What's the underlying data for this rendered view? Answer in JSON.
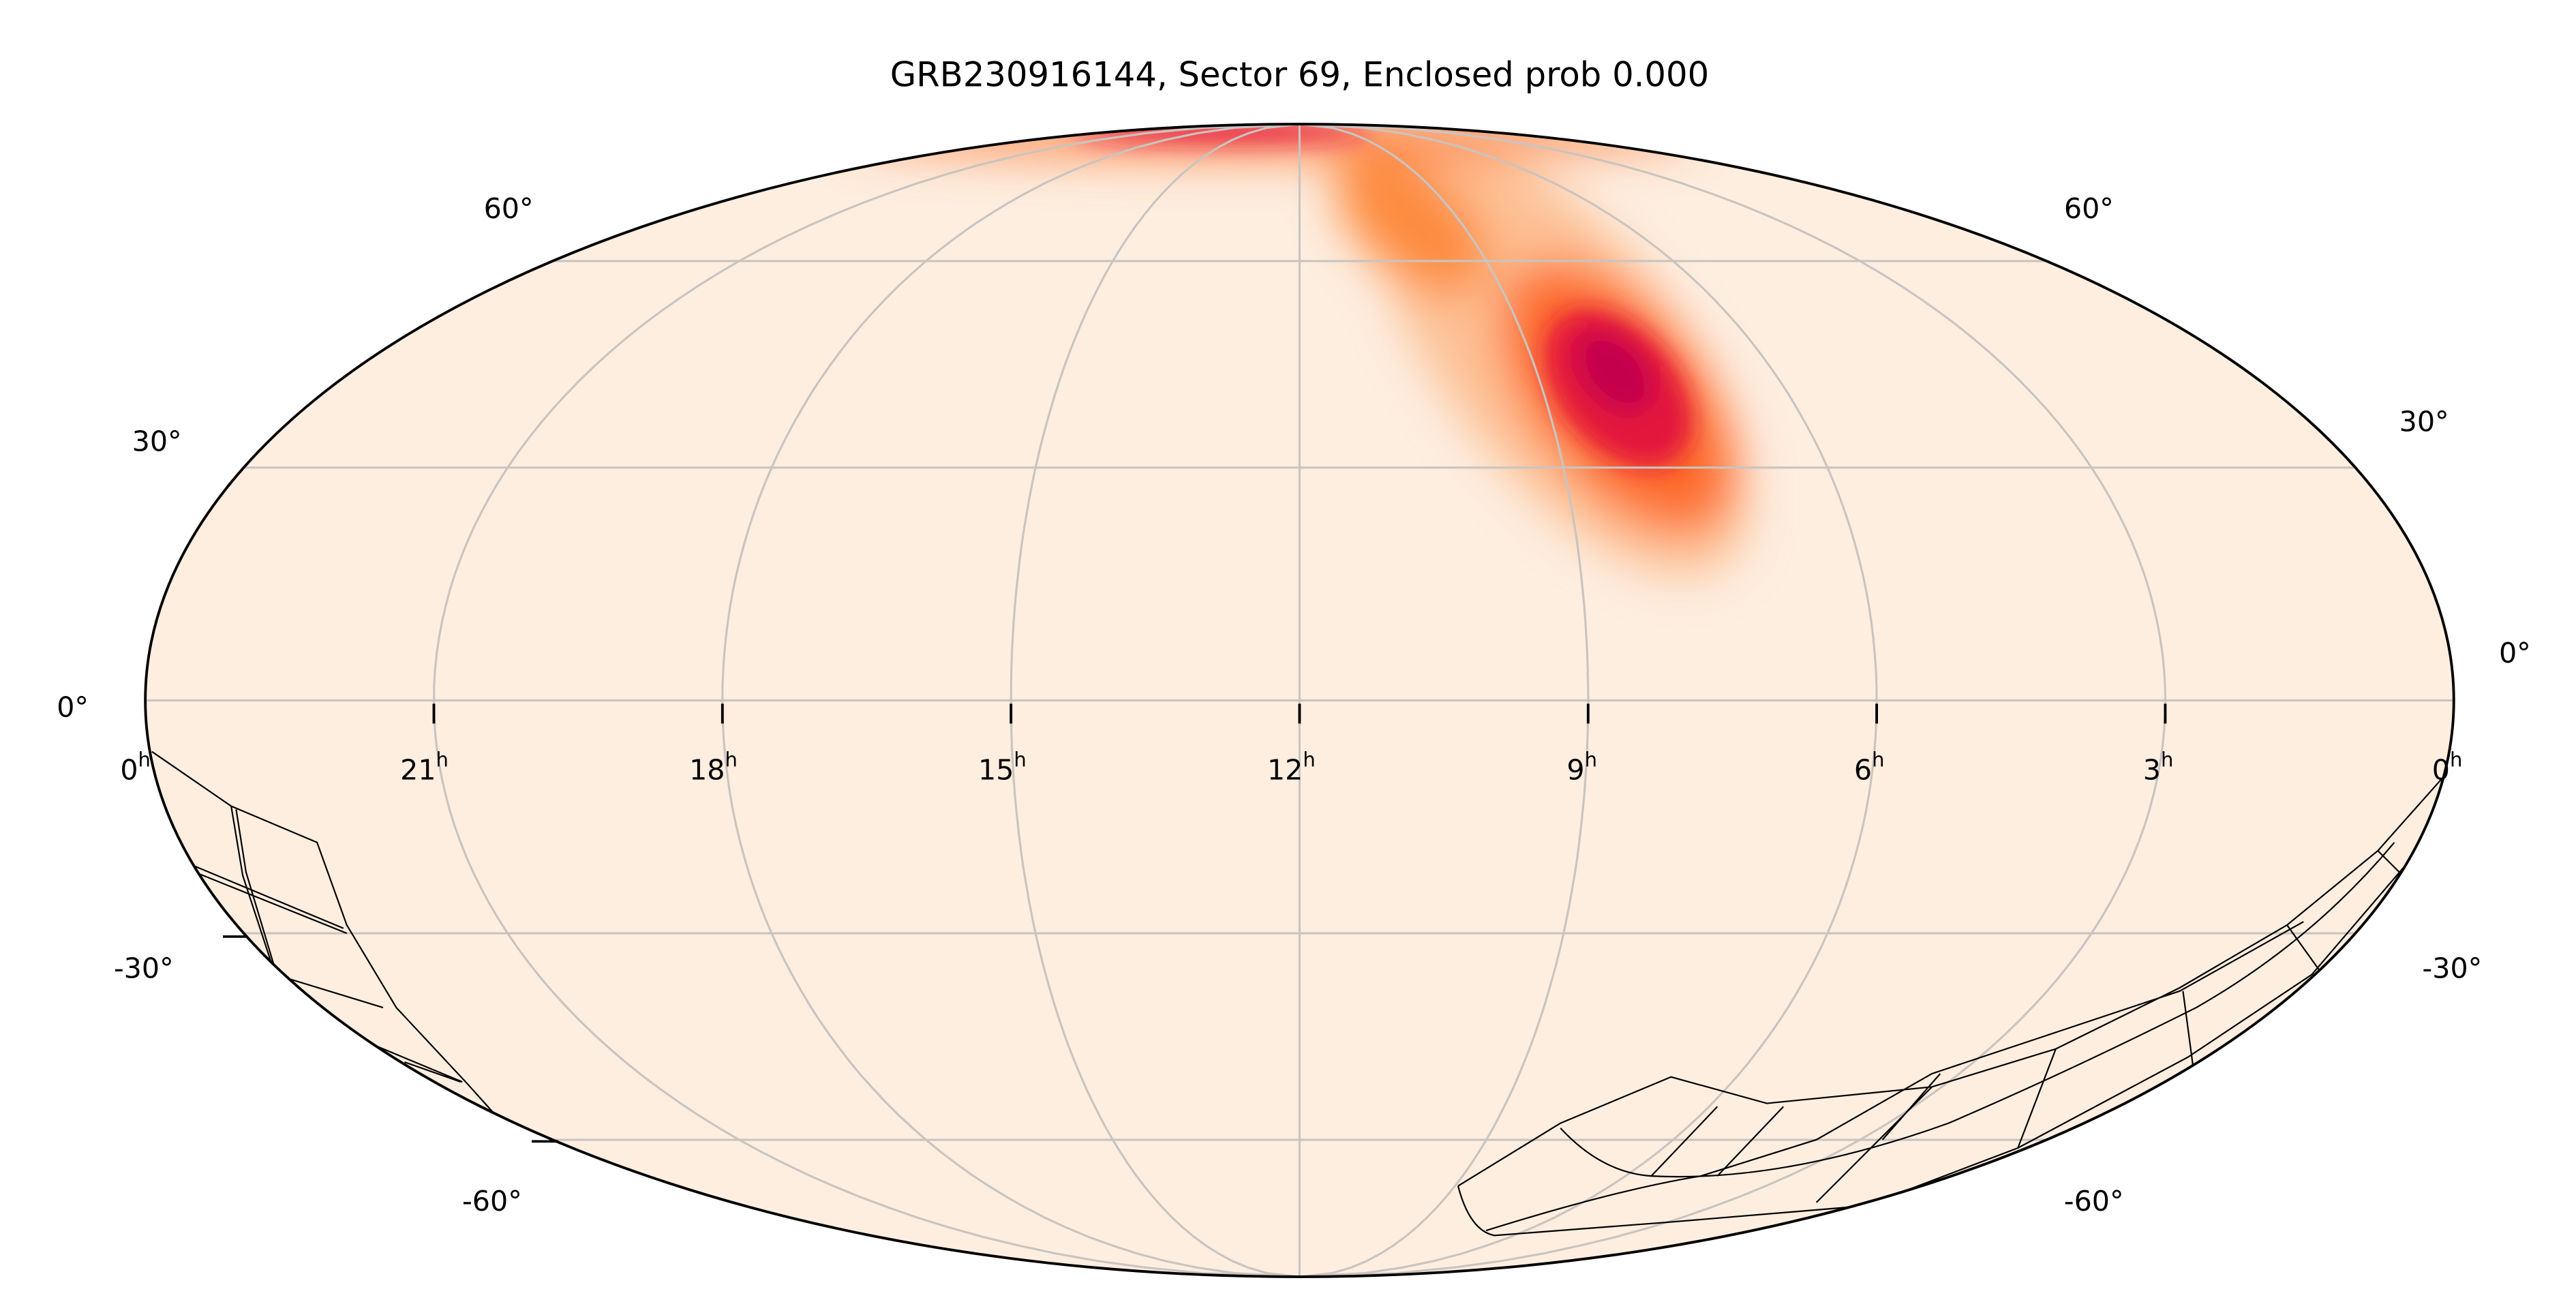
{
  "chart_data": {
    "type": "heatmap",
    "projection": "mollweide",
    "title": "GRB230916144, Sector 69, Enclosed prob 0.000",
    "ra_ticks": [
      {
        "hours": 24,
        "label": "0",
        "sup": "h"
      },
      {
        "hours": 21,
        "label": "21",
        "sup": "h"
      },
      {
        "hours": 18,
        "label": "18",
        "sup": "h"
      },
      {
        "hours": 15,
        "label": "15",
        "sup": "h"
      },
      {
        "hours": 12,
        "label": "12",
        "sup": "h"
      },
      {
        "hours": 9,
        "label": "9",
        "sup": "h"
      },
      {
        "hours": 6,
        "label": "6",
        "sup": "h"
      },
      {
        "hours": 3,
        "label": "3",
        "sup": "h"
      },
      {
        "hours": 0,
        "label": "0",
        "sup": "h"
      }
    ],
    "dec_ticks": [
      {
        "deg": 60,
        "label": "60°"
      },
      {
        "deg": 30,
        "label": "30°"
      },
      {
        "deg": 0,
        "label": "0°"
      },
      {
        "deg": -30,
        "label": "-30°"
      },
      {
        "deg": -60,
        "label": "-60°"
      }
    ],
    "probability_peak": {
      "ra_hours": 8.4,
      "dec_deg": 40
    },
    "colormap_low": "#fdeee0",
    "colormap_mid": "#fd7a2a",
    "colormap_high": "#c3004e",
    "grid": true,
    "enclosed_prob": 0.0
  }
}
